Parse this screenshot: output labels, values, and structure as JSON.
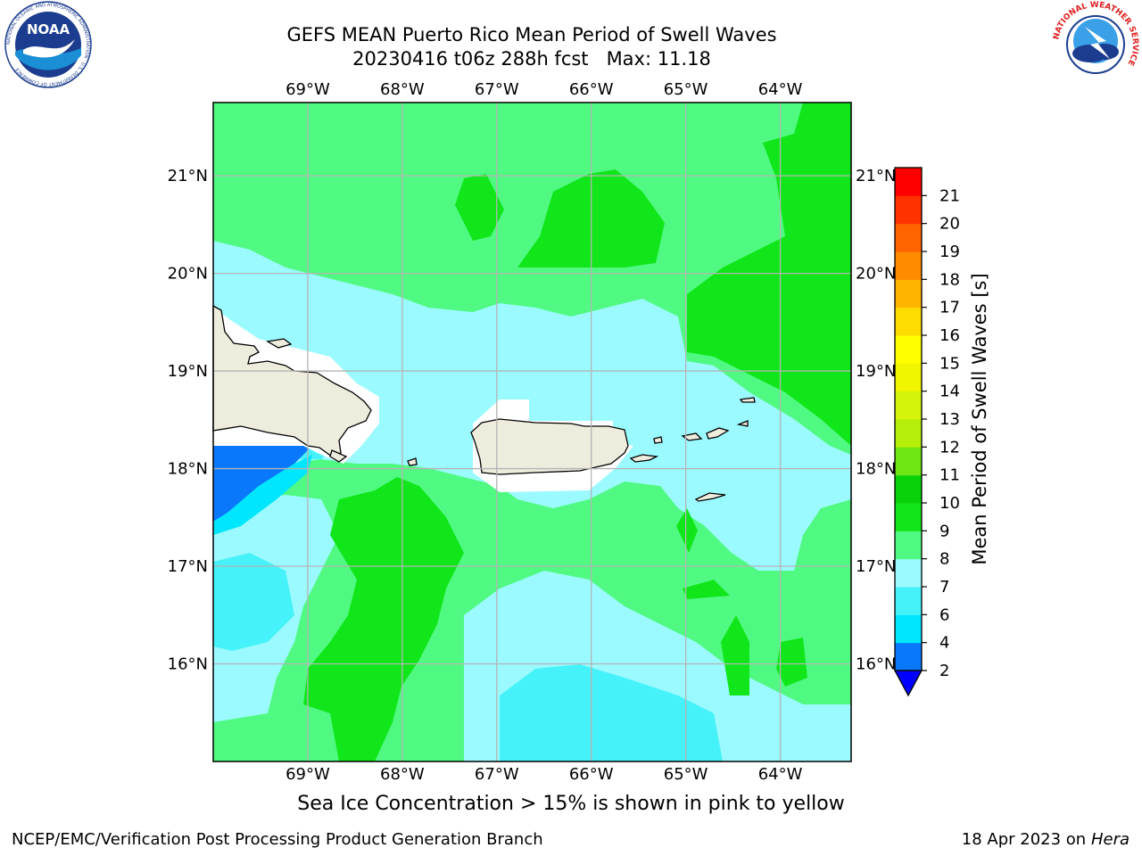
{
  "header": {
    "title_line1": "GEFS MEAN Puerto Rico Mean Period of Swell Waves",
    "title_line2": "20230416 t06z 288h fcst   Max: 11.18"
  },
  "logos": {
    "noaa": {
      "text": "NOAA",
      "ring_text": "NATIONAL OCEANIC AND ATMOSPHERIC ADMINISTRATION · U.S. DEPARTMENT OF COMMERCE"
    },
    "nws": {
      "ring_text": "NATIONAL WEATHER SERVICE"
    }
  },
  "map": {
    "lon_labels": [
      "69°W",
      "68°W",
      "67°W",
      "66°W",
      "65°W",
      "64°W"
    ],
    "lat_labels": [
      "21°N",
      "20°N",
      "19°N",
      "18°N",
      "17°N",
      "16°N"
    ],
    "lon_range": [
      -70.0,
      -63.25
    ],
    "lat_range": [
      15.0,
      21.75
    ],
    "grid": true,
    "colors": {
      "land": "#eeecdd",
      "coast": "#000000",
      "grid": "#b4b4b4"
    }
  },
  "colorbar": {
    "label": "Mean Period of Swell Waves [s]",
    "tick_labels": [
      "2",
      "4",
      "6",
      "7",
      "8",
      "9",
      "10",
      "11",
      "12",
      "13",
      "14",
      "15",
      "16",
      "17",
      "18",
      "19",
      "20",
      "21"
    ],
    "colors": [
      "#0a78fa",
      "#00e6ff",
      "#46f2fa",
      "#9bfaff",
      "#50fa82",
      "#10e61a",
      "#0ad20a",
      "#6ee614",
      "#b4ee0a",
      "#d4f50a",
      "#f0f500",
      "#ffff00",
      "#ffdc00",
      "#ffb400",
      "#ff8c00",
      "#ff6400",
      "#ff3200",
      "#ff0000"
    ],
    "extend_min_color": "#0000ff"
  },
  "footer": {
    "note": "Sea Ice Concentration > 15% is shown in pink to yellow",
    "left": "NCEP/EMC/Verification Post Processing Product Generation Branch",
    "right_date": "18 Apr 2023 on ",
    "right_machine": "Hera"
  }
}
